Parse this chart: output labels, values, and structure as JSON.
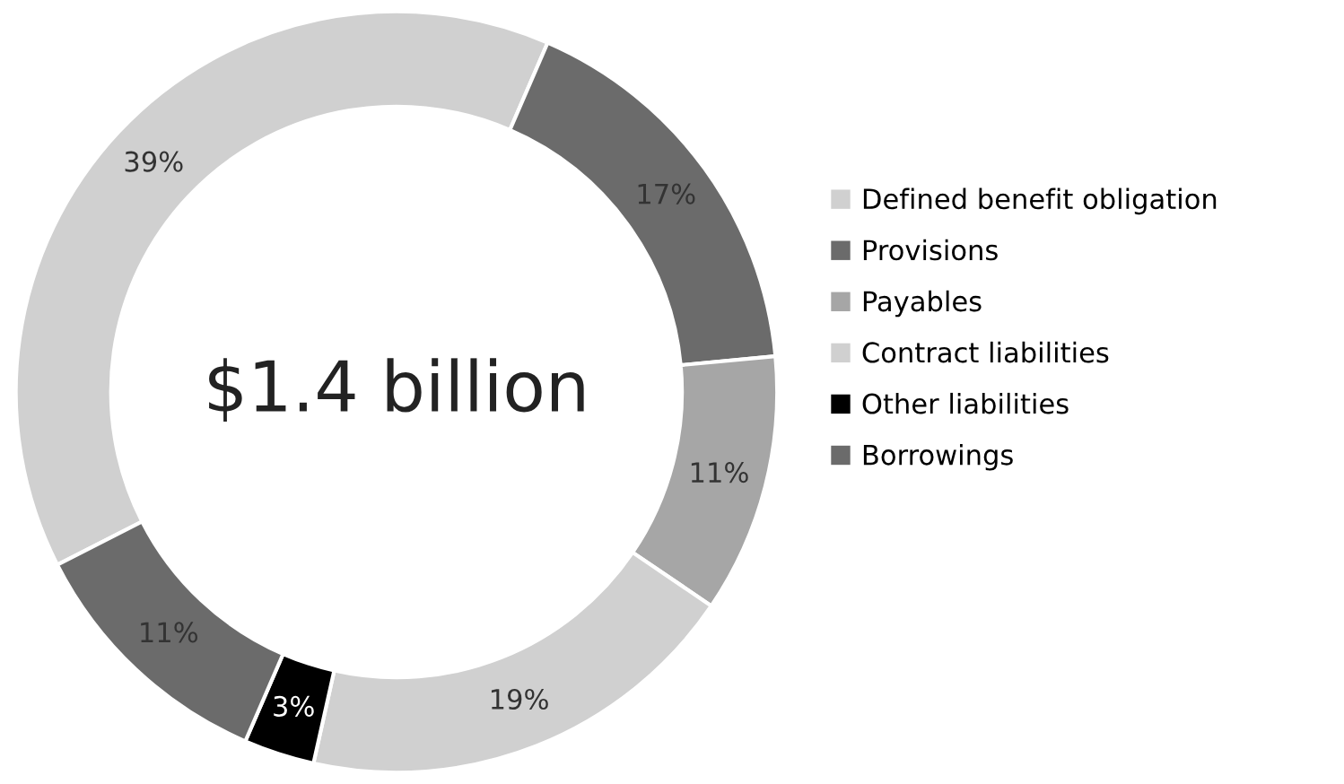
{
  "chart_data": {
    "type": "donut",
    "categories": [
      "Defined benefit obligation",
      "Provisions",
      "Payables",
      "Contract liabilities",
      "Other liabilities",
      "Borrowings"
    ],
    "values": [
      39,
      17,
      11,
      19,
      3,
      11
    ],
    "colors": [
      "#d0d0d0",
      "#6b6b6b",
      "#a6a6a6",
      "#d0d0d0",
      "#000000",
      "#6b6b6b"
    ],
    "value_labels": [
      "39%",
      "17%",
      "11%",
      "19%",
      "3%",
      "11%"
    ],
    "annotations": [
      "$1.4 billion"
    ],
    "legend": "right"
  }
}
